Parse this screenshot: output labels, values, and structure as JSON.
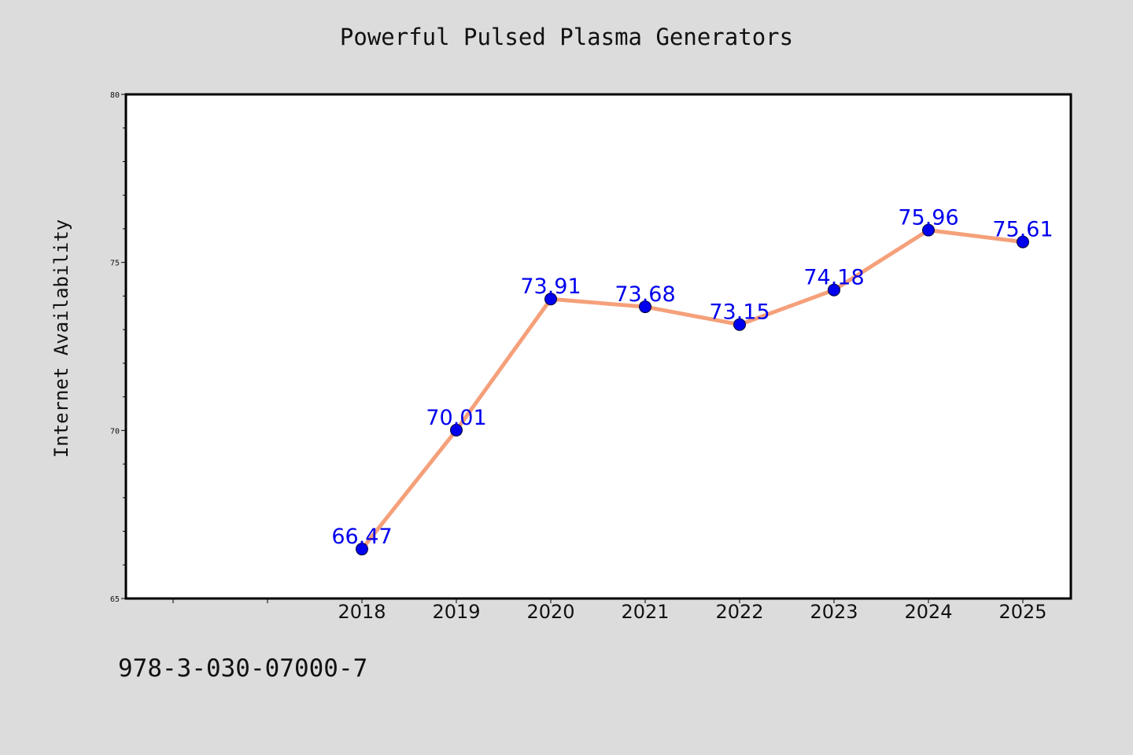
{
  "chart_data": {
    "type": "line",
    "title": "Powerful Pulsed Plasma Generators",
    "xlabel": "",
    "ylabel": "Internet Availability",
    "categories": [
      "2018",
      "2019",
      "2020",
      "2021",
      "2022",
      "2023",
      "2024",
      "2025"
    ],
    "series": [
      {
        "values": [
          66.47,
          70.01,
          73.91,
          73.68,
          73.15,
          74.18,
          75.96,
          75.61
        ],
        "labels": [
          "66.47",
          "70.01",
          "73.91",
          "73.68",
          "73.15",
          "74.18",
          "75.96",
          "75.61"
        ]
      }
    ],
    "ylim": [
      65,
      80
    ],
    "yticks": [
      "65",
      "70",
      "75",
      "80"
    ],
    "grid": false,
    "legend": "none",
    "line_color": "#f5a07a",
    "marker_color": "#0000ee",
    "label_color": "#0000ee"
  },
  "footer": {
    "code": "978-3-030-07000-7"
  }
}
